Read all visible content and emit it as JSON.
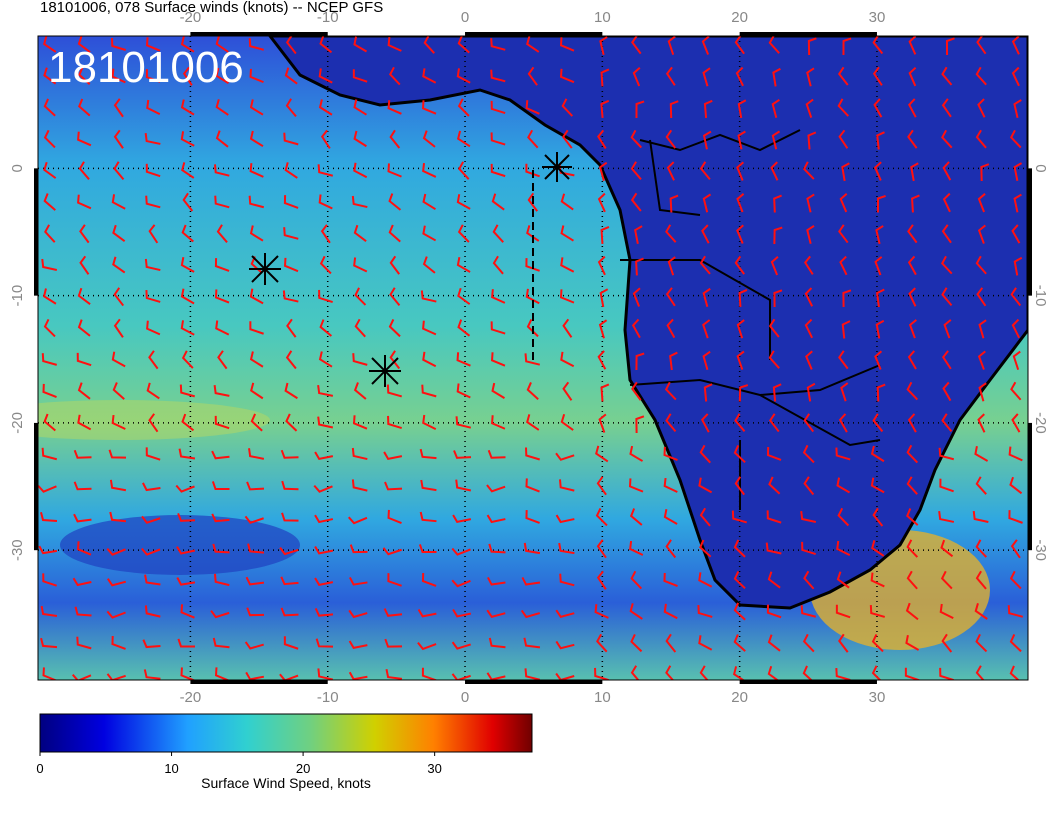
{
  "title": "18101006, 078 Surface winds (knots) -- NCEP GFS",
  "date_label": "18101006",
  "map": {
    "lonlim": [
      -31.1,
      41
    ],
    "latlim": [
      -40.2,
      10.4
    ],
    "lon_ticks": [
      -20,
      -10,
      0,
      10,
      20,
      30
    ],
    "lat_ticks": [
      0,
      -10,
      -20,
      -30
    ]
  },
  "colorbar": {
    "label": "Surface Wind Speed, knots",
    "lim": [
      0,
      37.4
    ],
    "ticks": [
      0,
      10,
      20,
      30
    ]
  }
}
